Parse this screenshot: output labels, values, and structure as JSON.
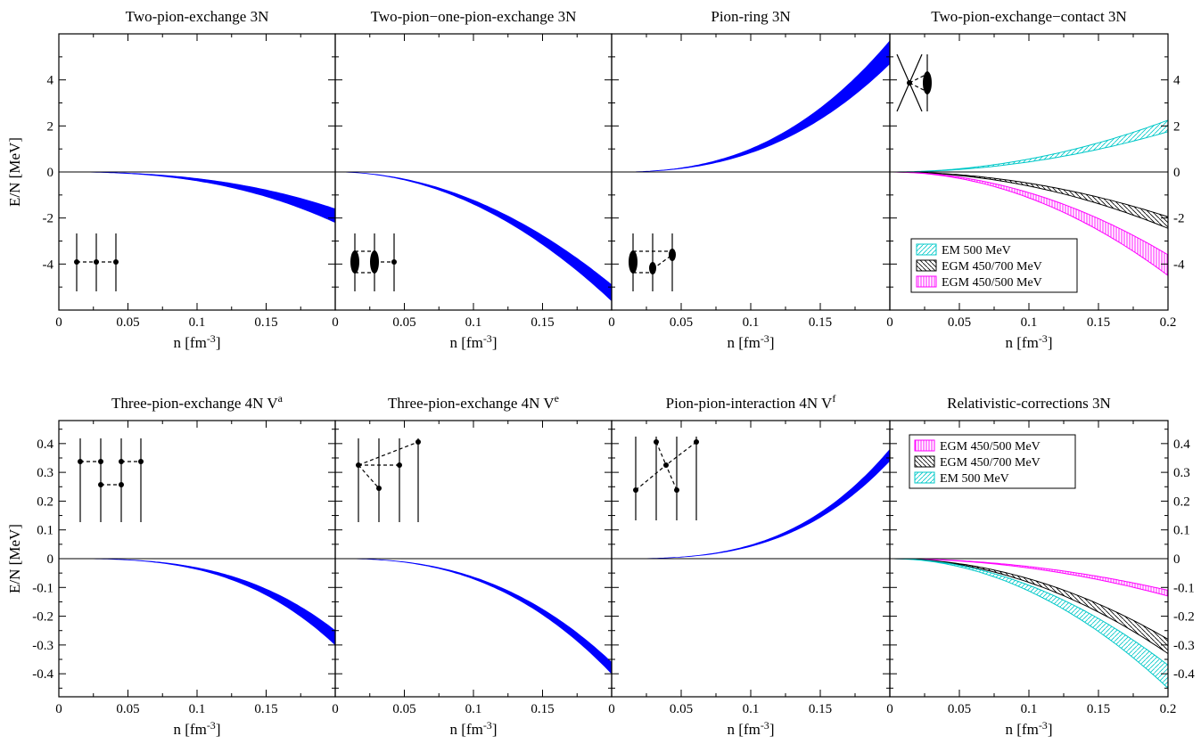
{
  "figure": {
    "xlabel": "n [fm",
    "xlabel_sup": "-3",
    "xlabel_end": "]",
    "ylabel": "E/N [MeV]"
  },
  "chart_data": [
    {
      "type": "area",
      "title": "Two-pion-exchange 3N",
      "title_sup": "",
      "xlim": [
        0,
        0.2
      ],
      "ylim": [
        -6,
        6
      ],
      "xticks": [
        "0",
        "0.05",
        "0.1",
        "0.15"
      ],
      "yticks": [
        "4",
        "2",
        "0",
        "-2",
        "-4"
      ],
      "bands": [
        {
          "color": "#0000ff",
          "fill": "solid",
          "upper": -1.6,
          "lower": -2.2,
          "power": 2.5
        }
      ]
    },
    {
      "type": "area",
      "title": "Two-pion−one-pion-exchange 3N",
      "title_sup": "",
      "xlim": [
        0,
        0.2
      ],
      "ylim": [
        -6,
        6
      ],
      "xticks": [
        "0",
        "0.05",
        "0.1",
        "0.15"
      ],
      "yticks": [],
      "bands": [
        {
          "color": "#0000ff",
          "fill": "solid",
          "upper": -4.9,
          "lower": -5.6,
          "power": 2
        }
      ]
    },
    {
      "type": "area",
      "title": "Pion-ring 3N",
      "title_sup": "",
      "xlim": [
        0,
        0.2
      ],
      "ylim": [
        -6,
        6
      ],
      "xticks": [
        "0",
        "0.05",
        "0.1",
        "0.15"
      ],
      "yticks": [],
      "bands": [
        {
          "color": "#0000ff",
          "fill": "solid",
          "upper": 5.7,
          "lower": 4.7,
          "power": 2.5
        }
      ]
    },
    {
      "type": "area",
      "title": "Two-pion-exchange−contact 3N",
      "title_sup": "",
      "xlim": [
        0,
        0.2
      ],
      "ylim": [
        -6,
        6
      ],
      "xticks": [
        "0",
        "0.05",
        "0.1",
        "0.15",
        "0.2"
      ],
      "yticks": [
        "4",
        "2",
        "0",
        "-2",
        "-4"
      ],
      "bands": [
        {
          "name": "EM 500 MeV",
          "color": "#00c8c8",
          "fill": "hatch-fwd",
          "upper": 2.25,
          "lower": 1.75,
          "power": 2
        },
        {
          "name": "EGM 450/700 MeV",
          "color": "#000000",
          "fill": "hatch-back",
          "upper": -1.95,
          "lower": -2.45,
          "power": 2
        },
        {
          "name": "EGM 450/500 MeV",
          "color": "#ff00ff",
          "fill": "hatch-vert",
          "upper": -3.6,
          "lower": -4.5,
          "power": 2
        }
      ],
      "legend": [
        "EM 500 MeV",
        "EGM 450/700 MeV",
        "EGM 450/500 MeV"
      ]
    },
    {
      "type": "area",
      "title": "Three-pion-exchange 4N V",
      "title_sup": "a",
      "xlim": [
        0,
        0.2
      ],
      "ylim": [
        -0.48,
        0.48
      ],
      "xticks": [
        "0",
        "0.05",
        "0.1",
        "0.15"
      ],
      "yticks": [
        "0.4",
        "0.3",
        "0.2",
        "0.1",
        "0",
        "-0.1",
        "-0.2",
        "-0.3",
        "-0.4"
      ],
      "bands": [
        {
          "color": "#0000ff",
          "fill": "solid",
          "upper": -0.25,
          "lower": -0.3,
          "power": 3
        }
      ]
    },
    {
      "type": "area",
      "title": "Three-pion-exchange 4N V",
      "title_sup": "e",
      "xlim": [
        0,
        0.2
      ],
      "ylim": [
        -0.48,
        0.48
      ],
      "xticks": [
        "0",
        "0.05",
        "0.1",
        "0.15"
      ],
      "yticks": [],
      "bands": [
        {
          "color": "#0000ff",
          "fill": "solid",
          "upper": -0.36,
          "lower": -0.4,
          "power": 2.5
        }
      ]
    },
    {
      "type": "area",
      "title": "Pion-pion-interaction 4N V",
      "title_sup": "f",
      "xlim": [
        0,
        0.2
      ],
      "ylim": [
        -0.48,
        0.48
      ],
      "xticks": [
        "0",
        "0.05",
        "0.1",
        "0.15"
      ],
      "yticks": [],
      "bands": [
        {
          "color": "#0000ff",
          "fill": "solid",
          "upper": 0.38,
          "lower": 0.34,
          "power": 3
        }
      ]
    },
    {
      "type": "area",
      "title": "Relativistic-corrections 3N",
      "title_sup": "",
      "xlim": [
        0,
        0.2
      ],
      "ylim": [
        -0.48,
        0.48
      ],
      "xticks": [
        "0",
        "0.05",
        "0.1",
        "0.15",
        "0.2"
      ],
      "yticks": [
        "0.4",
        "0.3",
        "0.2",
        "0.1",
        "0",
        "-0.1",
        "-0.2",
        "-0.3",
        "-0.4"
      ],
      "bands": [
        {
          "name": "EGM 450/500 MeV",
          "color": "#ff00ff",
          "fill": "hatch-vert",
          "upper": -0.11,
          "lower": -0.13,
          "power": 2
        },
        {
          "name": "EGM 450/700 MeV",
          "color": "#000000",
          "fill": "hatch-back",
          "upper": -0.28,
          "lower": -0.33,
          "power": 2
        },
        {
          "name": "EM 500 MeV",
          "color": "#00c8c8",
          "fill": "hatch-fwd",
          "upper": -0.37,
          "lower": -0.45,
          "power": 2
        }
      ],
      "legend": [
        "EGM 450/500 MeV",
        "EGM 450/700 MeV",
        "EM 500 MeV"
      ]
    }
  ]
}
